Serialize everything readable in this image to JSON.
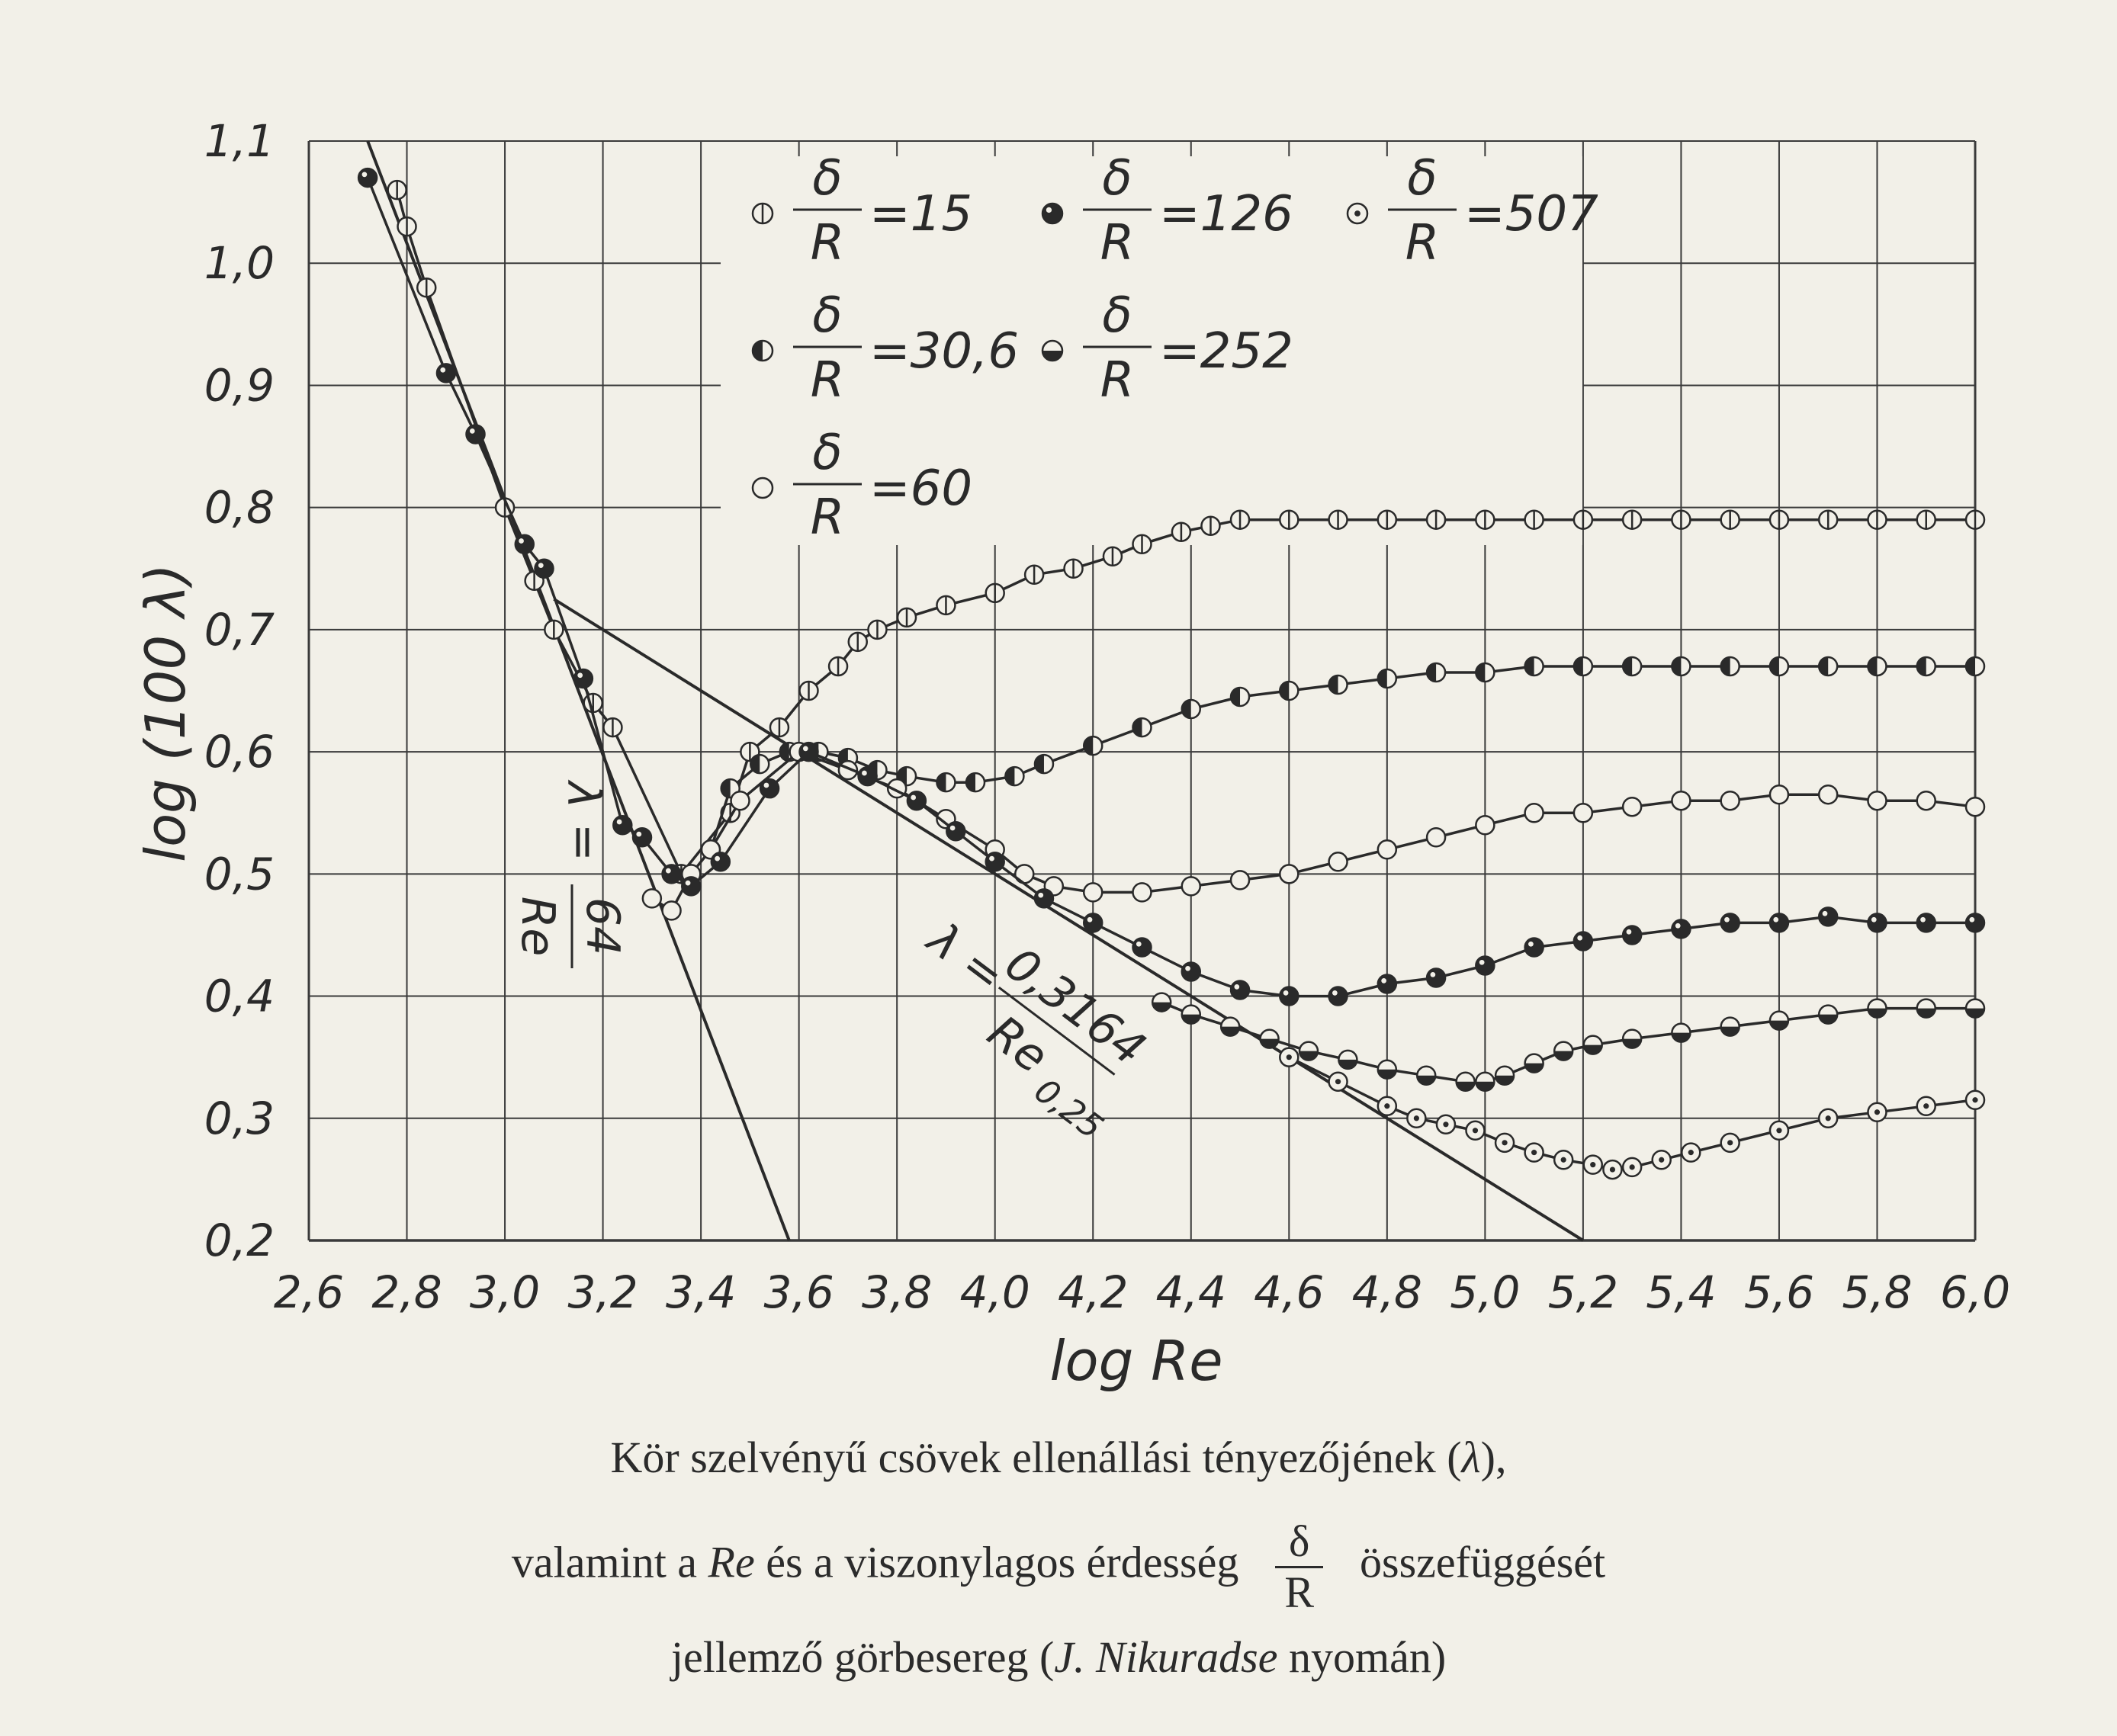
{
  "chart_data": {
    "type": "scatter",
    "xlabel": "log Re",
    "ylabel": "log (100 λ)",
    "xlim": [
      2.6,
      6.0
    ],
    "ylim": [
      0.2,
      1.1
    ],
    "xticks": [
      "2,6",
      "2,8",
      "3,0",
      "3,2",
      "3,4",
      "3,6",
      "3,8",
      "4,0",
      "4,2",
      "4,4",
      "4,6",
      "4,8",
      "5,0",
      "5,2",
      "5,4",
      "5,6",
      "5,8",
      "6,0"
    ],
    "yticks": [
      "0,2",
      "0,3",
      "0,4",
      "0,5",
      "0,6",
      "0,7",
      "0,8",
      "0,9",
      "1,0",
      "1,1"
    ],
    "grid": true,
    "legend_position": "top-left inside plot",
    "legend": [
      {
        "label": "=15",
        "marker": "half-vertical"
      },
      {
        "label": "=126",
        "marker": "mostly-filled"
      },
      {
        "label": "=507",
        "marker": "dotted"
      },
      {
        "label": "=30,6",
        "marker": "half-filled-left"
      },
      {
        "label": "=252",
        "marker": "half-filled-bottom"
      },
      {
        "label": "=60",
        "marker": "open"
      }
    ],
    "legend_fraction": {
      "num": "δ",
      "den": "R"
    },
    "reference_lines": [
      {
        "label_lhs": "λ =",
        "label_num": "64",
        "label_den": "Re",
        "points": [
          [
            2.72,
            1.1
          ],
          [
            3.58,
            0.2
          ]
        ]
      },
      {
        "label_lhs": "λ =",
        "label_num": "0,3164",
        "label_den": "Re",
        "label_den_exp": "0,25",
        "points": [
          [
            3.1,
            0.725
          ],
          [
            5.2,
            0.2
          ]
        ]
      }
    ],
    "series": [
      {
        "name": "=15",
        "marker": "half-vertical",
        "x": [
          2.78,
          2.8,
          2.84,
          3.0,
          3.06,
          3.1,
          3.18,
          3.22,
          3.36,
          3.46,
          3.5,
          3.56,
          3.62,
          3.68,
          3.72,
          3.76,
          3.82,
          3.9,
          4.0,
          4.08,
          4.16,
          4.24,
          4.3,
          4.38,
          4.44,
          4.5,
          4.6,
          4.7,
          4.8,
          4.9,
          5.0,
          5.1,
          5.2,
          5.3,
          5.4,
          5.5,
          5.6,
          5.7,
          5.8,
          5.9,
          6.0
        ],
        "y": [
          1.06,
          1.03,
          0.98,
          0.8,
          0.74,
          0.7,
          0.64,
          0.62,
          0.5,
          0.55,
          0.6,
          0.62,
          0.65,
          0.67,
          0.69,
          0.7,
          0.71,
          0.72,
          0.73,
          0.745,
          0.75,
          0.76,
          0.77,
          0.78,
          0.785,
          0.79,
          0.79,
          0.79,
          0.79,
          0.79,
          0.79,
          0.79,
          0.79,
          0.79,
          0.79,
          0.79,
          0.79,
          0.79,
          0.79,
          0.79,
          0.79
        ]
      },
      {
        "name": "=30,6",
        "marker": "half-filled-left",
        "x": [
          3.42,
          3.46,
          3.52,
          3.58,
          3.64,
          3.7,
          3.76,
          3.82,
          3.9,
          3.96,
          4.04,
          4.1,
          4.2,
          4.3,
          4.4,
          4.5,
          4.6,
          4.7,
          4.8,
          4.9,
          5.0,
          5.1,
          5.2,
          5.3,
          5.4,
          5.5,
          5.6,
          5.7,
          5.8,
          5.9,
          6.0
        ],
        "y": [
          0.52,
          0.57,
          0.59,
          0.6,
          0.6,
          0.595,
          0.585,
          0.58,
          0.575,
          0.575,
          0.58,
          0.59,
          0.605,
          0.62,
          0.635,
          0.645,
          0.65,
          0.655,
          0.66,
          0.665,
          0.665,
          0.67,
          0.67,
          0.67,
          0.67,
          0.67,
          0.67,
          0.67,
          0.67,
          0.67,
          0.67
        ]
      },
      {
        "name": "=60",
        "marker": "open",
        "x": [
          3.3,
          3.34,
          3.38,
          3.42,
          3.48,
          3.6,
          3.7,
          3.8,
          3.9,
          4.0,
          4.06,
          4.12,
          4.2,
          4.3,
          4.4,
          4.5,
          4.6,
          4.7,
          4.8,
          4.9,
          5.0,
          5.1,
          5.2,
          5.3,
          5.4,
          5.5,
          5.6,
          5.7,
          5.8,
          5.9,
          6.0
        ],
        "y": [
          0.48,
          0.47,
          0.5,
          0.52,
          0.56,
          0.6,
          0.585,
          0.57,
          0.545,
          0.52,
          0.5,
          0.49,
          0.485,
          0.485,
          0.49,
          0.495,
          0.5,
          0.51,
          0.52,
          0.53,
          0.54,
          0.55,
          0.55,
          0.555,
          0.56,
          0.56,
          0.565,
          0.565,
          0.56,
          0.56,
          0.555
        ]
      },
      {
        "name": "=126",
        "marker": "mostly-filled",
        "x": [
          2.72,
          2.88,
          2.94,
          3.04,
          3.08,
          3.16,
          3.24,
          3.28,
          3.34,
          3.38,
          3.44,
          3.54,
          3.62,
          3.74,
          3.84,
          3.92,
          4.0,
          4.1,
          4.2,
          4.3,
          4.4,
          4.5,
          4.6,
          4.7,
          4.8,
          4.9,
          5.0,
          5.1,
          5.2,
          5.3,
          5.4,
          5.5,
          5.6,
          5.7,
          5.8,
          5.9,
          6.0
        ],
        "y": [
          1.07,
          0.91,
          0.86,
          0.77,
          0.75,
          0.66,
          0.54,
          0.53,
          0.5,
          0.49,
          0.51,
          0.57,
          0.6,
          0.58,
          0.56,
          0.535,
          0.51,
          0.48,
          0.46,
          0.44,
          0.42,
          0.405,
          0.4,
          0.4,
          0.41,
          0.415,
          0.425,
          0.44,
          0.445,
          0.45,
          0.455,
          0.46,
          0.46,
          0.465,
          0.46,
          0.46,
          0.46
        ]
      },
      {
        "name": "=252",
        "marker": "half-filled-bottom",
        "x": [
          4.34,
          4.4,
          4.48,
          4.56,
          4.64,
          4.72,
          4.8,
          4.88,
          4.96,
          5.0,
          5.04,
          5.1,
          5.16,
          5.22,
          5.3,
          5.4,
          5.5,
          5.6,
          5.7,
          5.8,
          5.9,
          6.0
        ],
        "y": [
          0.395,
          0.385,
          0.375,
          0.365,
          0.355,
          0.348,
          0.34,
          0.335,
          0.33,
          0.33,
          0.335,
          0.345,
          0.355,
          0.36,
          0.365,
          0.37,
          0.375,
          0.38,
          0.385,
          0.39,
          0.39,
          0.39
        ]
      },
      {
        "name": "=507",
        "marker": "dotted",
        "x": [
          4.6,
          4.7,
          4.8,
          4.86,
          4.92,
          4.98,
          5.04,
          5.1,
          5.16,
          5.22,
          5.26,
          5.3,
          5.36,
          5.42,
          5.5,
          5.6,
          5.7,
          5.8,
          5.9,
          6.0
        ],
        "y": [
          0.35,
          0.33,
          0.31,
          0.3,
          0.295,
          0.29,
          0.28,
          0.272,
          0.266,
          0.262,
          0.258,
          0.26,
          0.266,
          0.272,
          0.28,
          0.29,
          0.3,
          0.305,
          0.31,
          0.315
        ]
      }
    ]
  },
  "caption": {
    "line1": "Kör szelvényű  csövek ellenállási tényezőjének (",
    "line1_sym": "λ",
    "line1_end": "),",
    "line2_pre": "valamint a ",
    "line2_re": "Re",
    "line2_mid": " és a viszonylagos érdesség",
    "frac_num": "δ",
    "frac_den": "R",
    "line2_post": "összefüggését",
    "line3_pre": "jellemző görbesereg (",
    "line3_author": "J. Nikuradse",
    "line3_post": " nyomán)"
  }
}
